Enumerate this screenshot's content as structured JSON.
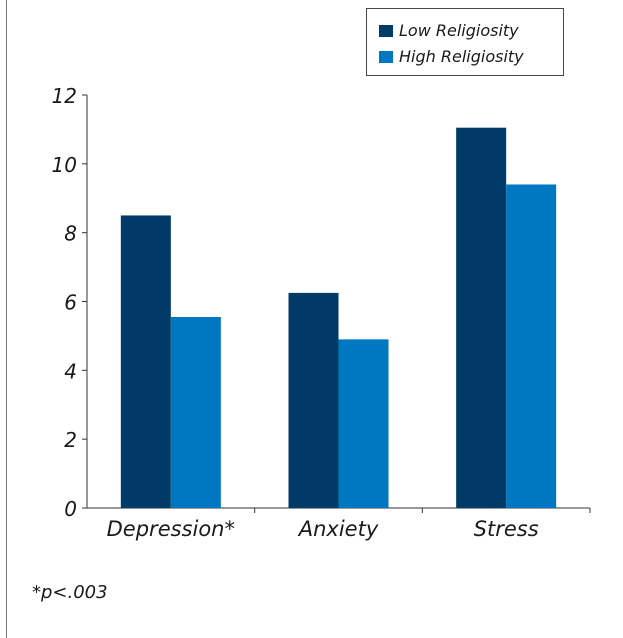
{
  "chart_data": {
    "type": "bar",
    "categories": [
      "Depression*",
      "Anxiety",
      "Stress"
    ],
    "series": [
      {
        "name": "Low Religiosity",
        "values": [
          8.5,
          6.25,
          11.05
        ],
        "color": "#003a66"
      },
      {
        "name": "High Religiosity",
        "values": [
          5.55,
          4.9,
          9.4
        ],
        "color": "#0078c1"
      }
    ],
    "ylim": [
      0,
      12
    ],
    "yticks": [
      "0",
      "2",
      "4",
      "6",
      "8",
      "10",
      "12"
    ],
    "grid": false,
    "legend_position": "top-right",
    "footnote": "*p<.003"
  }
}
